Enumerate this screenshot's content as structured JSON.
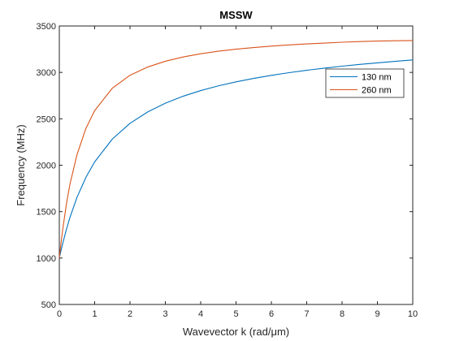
{
  "chart_data": {
    "type": "line",
    "title": "MSSW",
    "xlabel": "Wavevector k (rad/μm)",
    "ylabel": "Frequency (MHz)",
    "xlim": [
      0,
      10
    ],
    "ylim": [
      500,
      3500
    ],
    "x_ticks": [
      "0",
      "1",
      "2",
      "3",
      "4",
      "5",
      "6",
      "7",
      "8",
      "9",
      "10"
    ],
    "y_ticks": [
      "500",
      "1000",
      "1500",
      "2000",
      "2500",
      "3000",
      "3500"
    ],
    "grid": false,
    "legend_position": "top-right",
    "x": [
      0,
      0.05,
      0.1,
      0.2,
      0.3,
      0.5,
      0.75,
      1,
      1.5,
      2,
      2.5,
      3,
      3.5,
      4,
      4.5,
      5,
      5.5,
      6,
      6.5,
      7,
      7.5,
      8,
      8.5,
      9,
      9.5,
      10
    ],
    "series": [
      {
        "name": "130 nm",
        "color": "#0072bd",
        "values": [
          1000,
          1084,
          1163,
          1308,
          1436,
          1654,
          1868,
          2036,
          2282,
          2451,
          2574,
          2668,
          2743,
          2804,
          2855,
          2898,
          2935,
          2968,
          2997,
          3023,
          3046,
          3067,
          3086,
          3103,
          3119,
          3134
        ]
      },
      {
        "name": "260 nm",
        "color": "#d95319",
        "values": [
          1000,
          1167,
          1317,
          1580,
          1794,
          2113,
          2395,
          2588,
          2830,
          2969,
          3058,
          3120,
          3166,
          3201,
          3228,
          3250,
          3268,
          3283,
          3296,
          3307,
          3316,
          3325,
          3332,
          3338,
          3341,
          3343
        ]
      }
    ]
  }
}
